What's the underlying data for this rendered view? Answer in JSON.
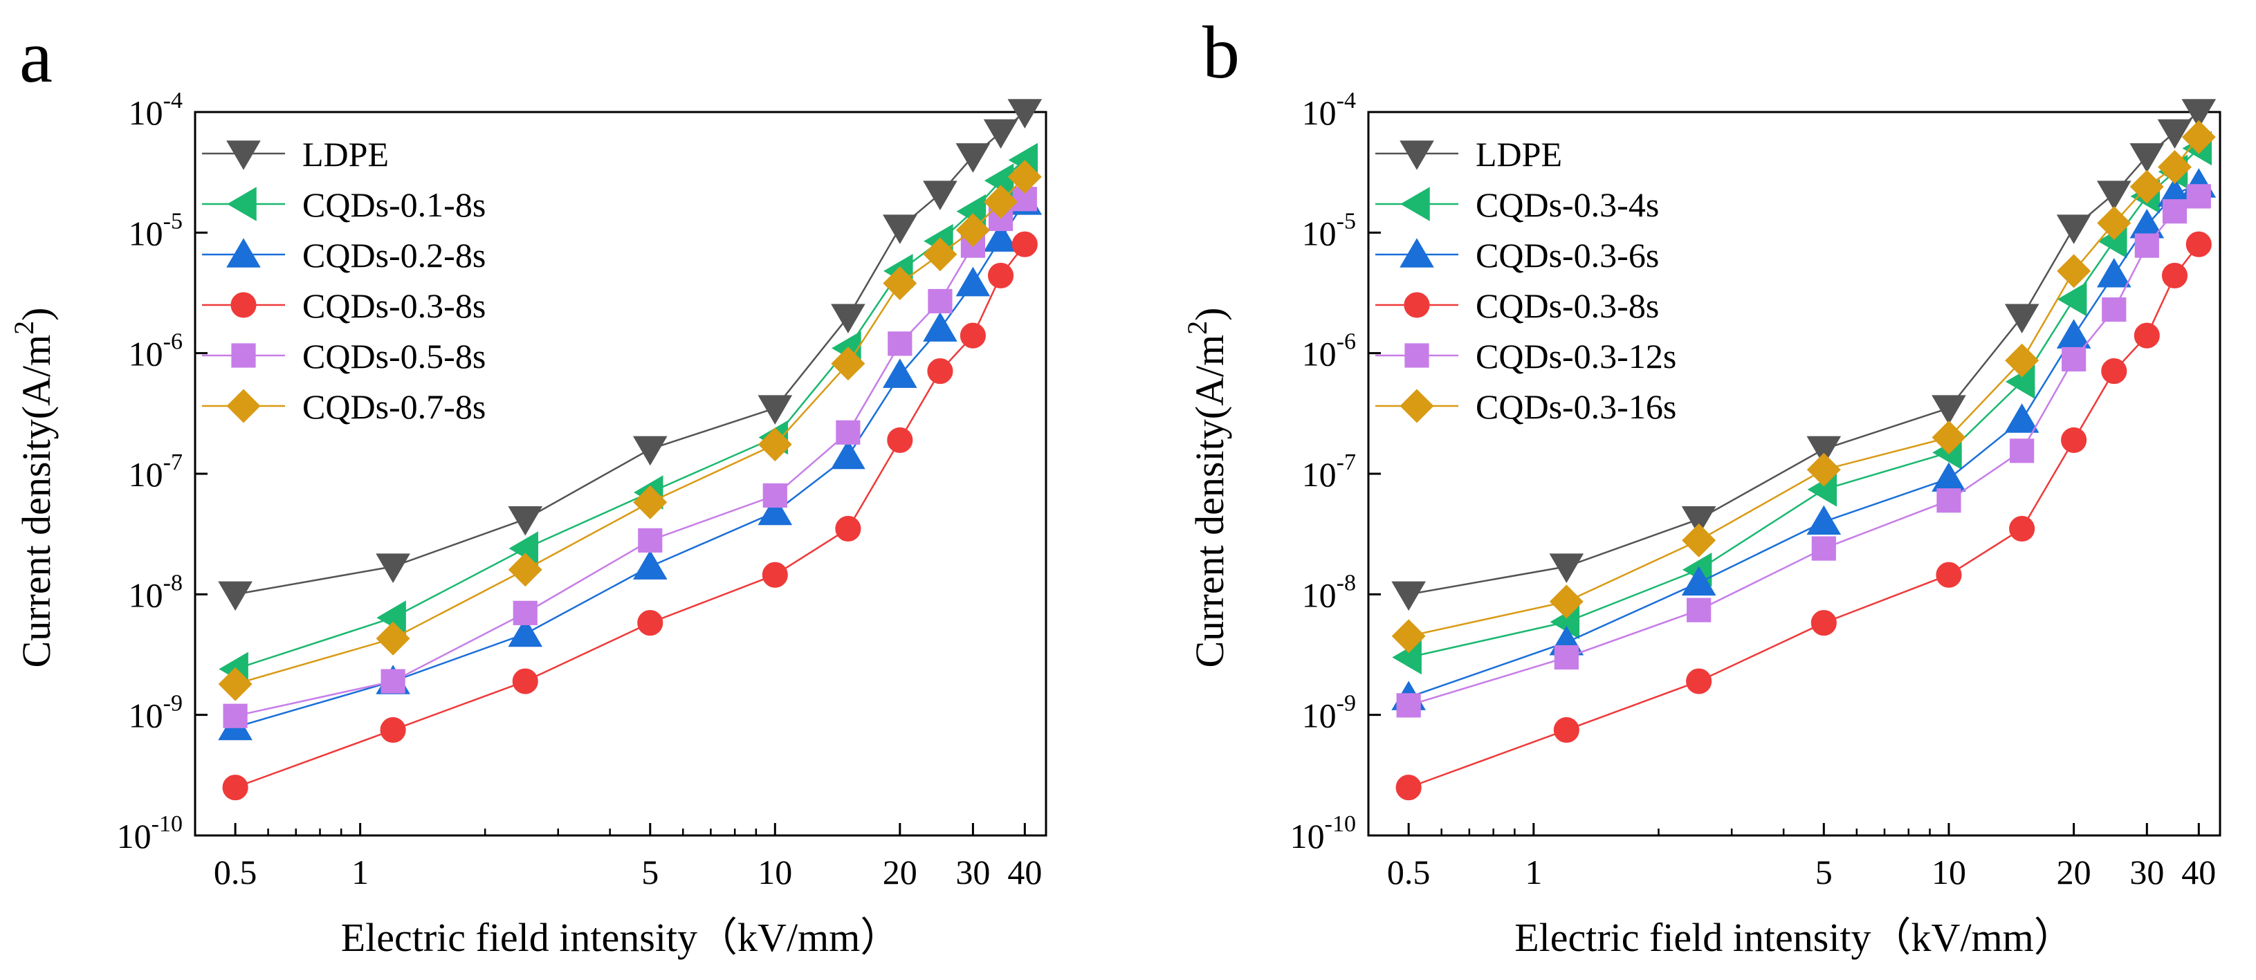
{
  "chart_data": [
    {
      "panel_label": "a",
      "type": "line",
      "xscale": "log",
      "yscale": "log",
      "xlabel": "Electric field intensity（kV/mm）",
      "ylabel": "Current density(A/m²)",
      "xlim": [
        0.4,
        45
      ],
      "ylim": [
        1e-10,
        0.0001
      ],
      "xticks": [
        0.5,
        1,
        5,
        10,
        20,
        30,
        40
      ],
      "xtick_labels": [
        "0.5",
        "1",
        "5",
        "10",
        "20",
        "30",
        "40"
      ],
      "yticks": [
        1e-10,
        1e-09,
        1e-08,
        1e-07,
        1e-06,
        1e-05,
        0.0001
      ],
      "ytick_labels": [
        {
          "base": "10",
          "exp": "-10"
        },
        {
          "base": "10",
          "exp": "-9"
        },
        {
          "base": "10",
          "exp": "-8"
        },
        {
          "base": "10",
          "exp": "-7"
        },
        {
          "base": "10",
          "exp": "-6"
        },
        {
          "base": "10",
          "exp": "-5"
        },
        {
          "base": "10",
          "exp": "-4"
        }
      ],
      "legend_location": "top-left",
      "x": [
        0.5,
        1.2,
        2.5,
        5,
        10,
        15,
        20,
        25,
        30,
        35,
        40
      ],
      "series": [
        {
          "name": "LDPE",
          "color": "#545454",
          "marker": "triangle-down",
          "values": [
            1e-08,
            1.7e-08,
            4.2e-08,
            1.6e-07,
            3.5e-07,
            2e-06,
            1.1e-05,
            2.1e-05,
            4.3e-05,
            6.8e-05,
            0.0001
          ]
        },
        {
          "name": "CQDs-0.1-8s",
          "color": "#1bb870",
          "marker": "triangle-left",
          "values": [
            2.4e-09,
            6.4e-09,
            2.4e-08,
            7e-08,
            2e-07,
            1.1e-06,
            4.8e-06,
            8.5e-06,
            1.5e-05,
            2.7e-05,
            4e-05
          ]
        },
        {
          "name": "CQDs-0.2-8s",
          "color": "#1a6fd8",
          "marker": "triangle-up",
          "values": [
            7.9e-10,
            1.9e-09,
            4.7e-09,
            1.7e-08,
            4.8e-08,
            1.4e-07,
            6.6e-07,
            1.6e-06,
            3.8e-06,
            8.9e-06,
            1.8e-05
          ]
        },
        {
          "name": "CQDs-0.3-8s",
          "color": "#ef3a3a",
          "marker": "circle",
          "values": [
            2.5e-10,
            7.5e-10,
            1.9e-09,
            5.8e-09,
            1.45e-08,
            3.5e-08,
            1.9e-07,
            7.1e-07,
            1.4e-06,
            4.4e-06,
            8e-06
          ]
        },
        {
          "name": "CQDs-0.5-8s",
          "color": "#c77de8",
          "marker": "square",
          "values": [
            9.8e-10,
            1.9e-09,
            7e-09,
            2.8e-08,
            6.6e-08,
            2.2e-07,
            1.2e-06,
            2.7e-06,
            7.8e-06,
            1.3e-05,
            1.9e-05
          ]
        },
        {
          "name": "CQDs-0.7-8s",
          "color": "#d99a14",
          "marker": "diamond",
          "values": [
            1.8e-09,
            4.3e-09,
            1.6e-08,
            5.8e-08,
            1.75e-07,
            8.2e-07,
            3.8e-06,
            6.6e-06,
            1.05e-05,
            1.8e-05,
            2.9e-05
          ]
        }
      ]
    },
    {
      "panel_label": "b",
      "type": "line",
      "xscale": "log",
      "yscale": "log",
      "xlabel": "Electric field intensity（kV/mm）",
      "ylabel": "Current density(A/m²)",
      "xlim": [
        0.4,
        45
      ],
      "ylim": [
        1e-10,
        0.0001
      ],
      "xticks": [
        0.5,
        1,
        5,
        10,
        20,
        30,
        40
      ],
      "xtick_labels": [
        "0.5",
        "1",
        "5",
        "10",
        "20",
        "30",
        "40"
      ],
      "yticks": [
        1e-10,
        1e-09,
        1e-08,
        1e-07,
        1e-06,
        1e-05,
        0.0001
      ],
      "ytick_labels": [
        {
          "base": "10",
          "exp": "-10"
        },
        {
          "base": "10",
          "exp": "-9"
        },
        {
          "base": "10",
          "exp": "-8"
        },
        {
          "base": "10",
          "exp": "-7"
        },
        {
          "base": "10",
          "exp": "-6"
        },
        {
          "base": "10",
          "exp": "-5"
        },
        {
          "base": "10",
          "exp": "-4"
        }
      ],
      "legend_location": "top-left",
      "x": [
        0.5,
        1.2,
        2.5,
        5,
        10,
        15,
        20,
        25,
        30,
        35,
        40
      ],
      "series": [
        {
          "name": "LDPE",
          "color": "#545454",
          "marker": "triangle-down",
          "values": [
            1e-08,
            1.7e-08,
            4.2e-08,
            1.6e-07,
            3.5e-07,
            2e-06,
            1.1e-05,
            2.1e-05,
            4.3e-05,
            6.8e-05,
            0.0001
          ]
        },
        {
          "name": "CQDs-0.3-4s",
          "color": "#1bb870",
          "marker": "triangle-left",
          "values": [
            3e-09,
            5.9e-09,
            1.6e-08,
            7.4e-08,
            1.5e-07,
            5.8e-07,
            2.8e-06,
            8.5e-06,
            2e-05,
            3.2e-05,
            5e-05
          ]
        },
        {
          "name": "CQDs-0.3-6s",
          "color": "#1a6fd8",
          "marker": "triangle-up",
          "values": [
            1.4e-09,
            4e-09,
            1.25e-08,
            4e-08,
            9.1e-08,
            2.8e-07,
            1.4e-06,
            4.5e-06,
            1.15e-05,
            2.1e-05,
            2.5e-05
          ]
        },
        {
          "name": "CQDs-0.3-8s",
          "color": "#ef3a3a",
          "marker": "circle",
          "values": [
            2.5e-10,
            7.5e-10,
            1.9e-09,
            5.8e-09,
            1.45e-08,
            3.5e-08,
            1.9e-07,
            7.1e-07,
            1.4e-06,
            4.4e-06,
            8e-06
          ]
        },
        {
          "name": "CQDs-0.3-12s",
          "color": "#c77de8",
          "marker": "square",
          "values": [
            1.2e-09,
            3e-09,
            7.4e-09,
            2.4e-08,
            6e-08,
            1.55e-07,
            8.9e-07,
            2.3e-06,
            7.8e-06,
            1.5e-05,
            2e-05
          ]
        },
        {
          "name": "CQDs-0.3-16s",
          "color": "#d99a14",
          "marker": "diamond",
          "values": [
            4.5e-09,
            8.7e-09,
            2.8e-08,
            1.08e-07,
            2e-07,
            8.7e-07,
            4.8e-06,
            1.2e-05,
            2.4e-05,
            3.5e-05,
            6.2e-05
          ]
        }
      ]
    }
  ]
}
